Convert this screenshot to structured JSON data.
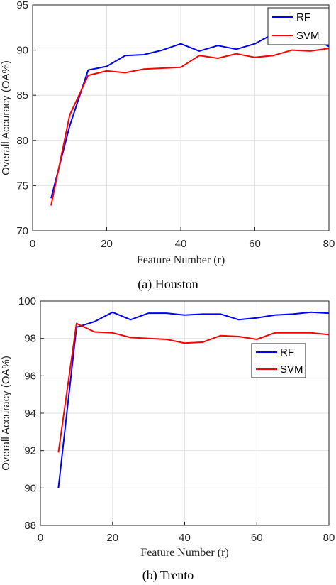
{
  "chart_data": [
    {
      "type": "line",
      "caption": "(a) Houston",
      "xlabel": "Feature Number (r)",
      "ylabel": "Overall Accuracy (OA%)",
      "xlim": [
        0,
        80
      ],
      "ylim": [
        70,
        95
      ],
      "xticks": [
        0,
        20,
        40,
        60,
        80
      ],
      "yticks": [
        70,
        75,
        80,
        85,
        90,
        95
      ],
      "grid": true,
      "legend_position": "top-right",
      "x": [
        5,
        10,
        15,
        20,
        25,
        30,
        35,
        40,
        45,
        50,
        55,
        60,
        65,
        70,
        75,
        80
      ],
      "series": [
        {
          "name": "RF",
          "color": "#0000ff",
          "values": [
            73.6,
            81.6,
            87.8,
            88.2,
            89.4,
            89.5,
            90.0,
            90.7,
            89.9,
            90.5,
            90.1,
            90.7,
            91.8,
            91.8,
            91.5,
            90.4
          ]
        },
        {
          "name": "SVM",
          "color": "#ff0000",
          "values": [
            72.8,
            82.8,
            87.2,
            87.7,
            87.5,
            87.9,
            88.0,
            88.1,
            89.4,
            89.1,
            89.6,
            89.2,
            89.4,
            90.0,
            89.9,
            90.2
          ]
        }
      ]
    },
    {
      "type": "line",
      "caption": "(b) Trento",
      "xlabel": "Feature Number (r)",
      "ylabel": "Overall Accuracy (OA%)",
      "xlim": [
        0,
        80
      ],
      "ylim": [
        88,
        100
      ],
      "xticks": [
        0,
        20,
        40,
        60,
        80
      ],
      "yticks": [
        88,
        90,
        92,
        94,
        96,
        98,
        100
      ],
      "grid": true,
      "legend_position": "upper-right",
      "x": [
        5,
        10,
        15,
        20,
        25,
        30,
        35,
        40,
        45,
        50,
        55,
        60,
        65,
        70,
        75,
        80
      ],
      "series": [
        {
          "name": "RF",
          "color": "#0000ff",
          "values": [
            90.0,
            98.6,
            98.9,
            99.4,
            99.0,
            99.35,
            99.35,
            99.25,
            99.3,
            99.3,
            99.0,
            99.1,
            99.25,
            99.3,
            99.4,
            99.35
          ]
        },
        {
          "name": "SVM",
          "color": "#ff0000",
          "values": [
            91.9,
            98.8,
            98.35,
            98.3,
            98.05,
            98.0,
            97.95,
            97.75,
            97.8,
            98.15,
            98.1,
            97.95,
            98.3,
            98.3,
            98.3,
            98.2
          ]
        }
      ]
    }
  ]
}
